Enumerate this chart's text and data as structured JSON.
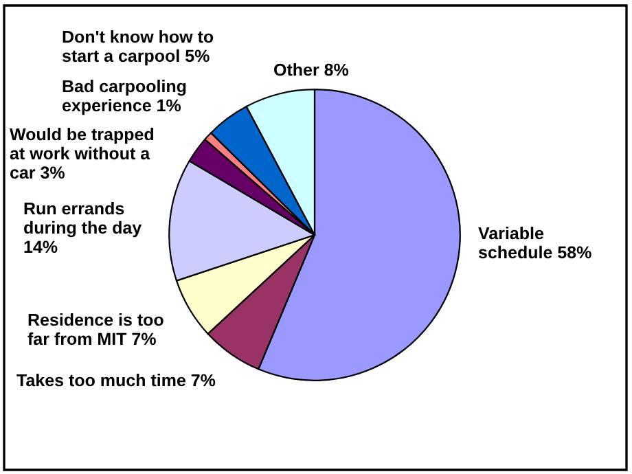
{
  "chart_data": {
    "type": "pie",
    "categories": [
      "Variable\nschedule 58%",
      "Takes too much time 7%",
      "Residence is too\nfar from MIT 7%",
      "Run errands\nduring the day\n14%",
      "Would be trapped\nat work without a\ncar 3%",
      "Bad carpooling\nexperience 1%",
      "Don't know how to\nstart a carpool 5%",
      "Other 8%"
    ],
    "values": [
      58,
      7,
      7,
      14,
      3,
      1,
      5,
      8
    ],
    "colors": [
      "#9999ff",
      "#993366",
      "#ffffcc",
      "#ccccff",
      "#660066",
      "#ff8080",
      "#0066cc",
      "#ccffff"
    ],
    "legend": false
  }
}
